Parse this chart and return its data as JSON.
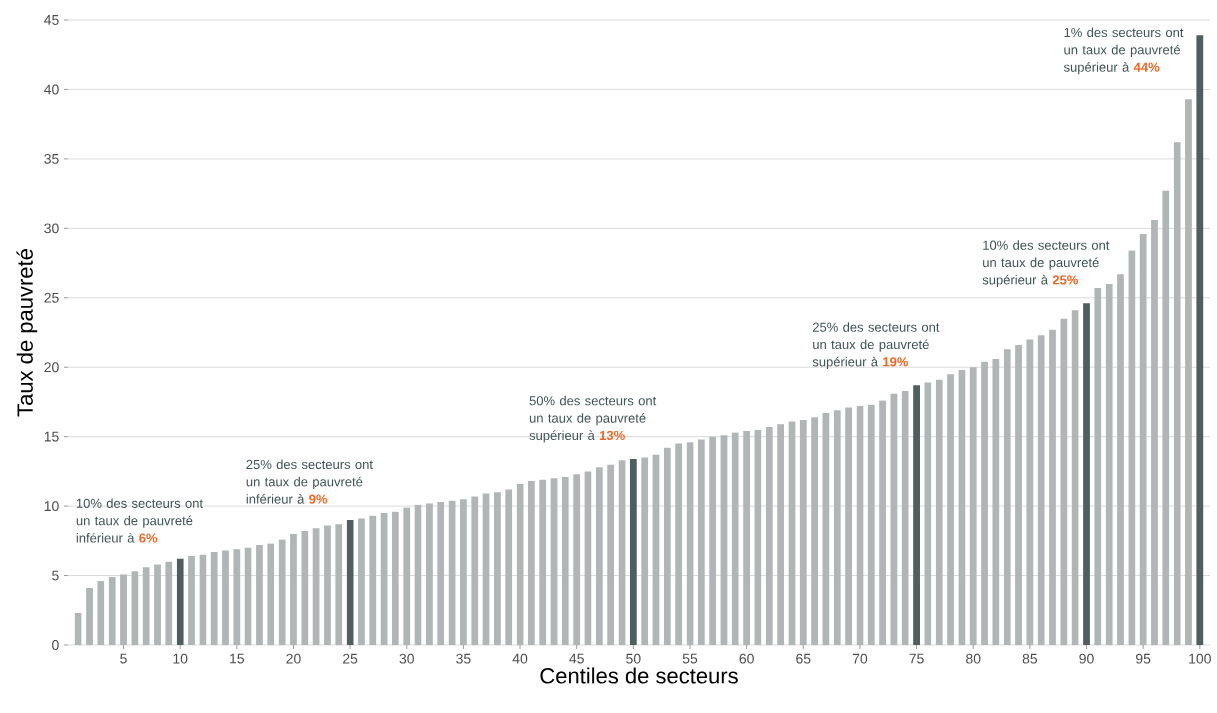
{
  "chart_data": {
    "type": "bar",
    "xlabel": "Centiles de secteurs",
    "ylabel": "Taux de pauvreté",
    "categories": [
      null,
      null,
      null,
      null,
      "5",
      null,
      null,
      null,
      null,
      "10",
      null,
      null,
      null,
      null,
      "15",
      null,
      null,
      null,
      null,
      "20",
      null,
      null,
      null,
      null,
      "25",
      null,
      null,
      null,
      null,
      "30",
      null,
      null,
      null,
      null,
      "35",
      null,
      null,
      null,
      null,
      "40",
      null,
      null,
      null,
      null,
      "45",
      null,
      null,
      null,
      null,
      "50",
      null,
      null,
      null,
      null,
      "55",
      null,
      null,
      null,
      null,
      "60",
      null,
      null,
      null,
      null,
      "65",
      null,
      null,
      null,
      null,
      "70",
      null,
      null,
      null,
      null,
      "75",
      null,
      null,
      null,
      null,
      "80",
      null,
      null,
      null,
      null,
      "85",
      null,
      null,
      null,
      null,
      "90",
      null,
      null,
      null,
      null,
      "95",
      null,
      null,
      null,
      null,
      "100"
    ],
    "values": [
      2.3,
      4.1,
      4.6,
      4.9,
      5.1,
      5.3,
      5.6,
      5.8,
      6.0,
      6.2,
      6.4,
      6.5,
      6.7,
      6.8,
      6.9,
      7.0,
      7.2,
      7.3,
      7.6,
      8.0,
      8.2,
      8.4,
      8.6,
      8.7,
      9.0,
      9.1,
      9.3,
      9.5,
      9.6,
      9.9,
      10.1,
      10.2,
      10.3,
      10.4,
      10.5,
      10.7,
      10.9,
      11.0,
      11.2,
      11.6,
      11.8,
      11.9,
      12.0,
      12.1,
      12.3,
      12.5,
      12.8,
      13.0,
      13.3,
      13.4,
      13.5,
      13.7,
      14.2,
      14.5,
      14.6,
      14.8,
      15.0,
      15.1,
      15.3,
      15.4,
      15.5,
      15.7,
      15.9,
      16.1,
      16.2,
      16.4,
      16.7,
      16.9,
      17.1,
      17.2,
      17.3,
      17.6,
      18.1,
      18.3,
      18.7,
      18.9,
      19.1,
      19.5,
      19.8,
      20.0,
      20.4,
      20.6,
      21.3,
      21.6,
      22.0,
      22.3,
      22.7,
      23.5,
      24.1,
      24.6,
      25.7,
      26.0,
      26.7,
      28.4,
      29.6,
      30.6,
      32.7,
      36.2,
      39.3,
      43.9
    ],
    "colors": [
      "#b0b6b6",
      "#b0b6b6",
      "#b0b6b6",
      "#b0b6b6",
      "#b0b6b6",
      "#b0b6b6",
      "#b0b6b6",
      "#b0b6b6",
      "#b0b6b6",
      "#4f5f60",
      "#b0b6b6",
      "#b0b6b6",
      "#b0b6b6",
      "#b0b6b6",
      "#b0b6b6",
      "#b0b6b6",
      "#b0b6b6",
      "#b0b6b6",
      "#b0b6b6",
      "#b0b6b6",
      "#b0b6b6",
      "#b0b6b6",
      "#b0b6b6",
      "#b0b6b6",
      "#4f5f60",
      "#b0b6b6",
      "#b0b6b6",
      "#b0b6b6",
      "#b0b6b6",
      "#b0b6b6",
      "#b0b6b6",
      "#b0b6b6",
      "#b0b6b6",
      "#b0b6b6",
      "#b0b6b6",
      "#b0b6b6",
      "#b0b6b6",
      "#b0b6b6",
      "#b0b6b6",
      "#b0b6b6",
      "#b0b6b6",
      "#b0b6b6",
      "#b0b6b6",
      "#b0b6b6",
      "#b0b6b6",
      "#b0b6b6",
      "#b0b6b6",
      "#b0b6b6",
      "#b0b6b6",
      "#4f5f60",
      "#b0b6b6",
      "#b0b6b6",
      "#b0b6b6",
      "#b0b6b6",
      "#b0b6b6",
      "#b0b6b6",
      "#b0b6b6",
      "#b0b6b6",
      "#b0b6b6",
      "#b0b6b6",
      "#b0b6b6",
      "#b0b6b6",
      "#b0b6b6",
      "#b0b6b6",
      "#b0b6b6",
      "#b0b6b6",
      "#b0b6b6",
      "#b0b6b6",
      "#b0b6b6",
      "#b0b6b6",
      "#b0b6b6",
      "#b0b6b6",
      "#b0b6b6",
      "#b0b6b6",
      "#4f5f60",
      "#b0b6b6",
      "#b0b6b6",
      "#b0b6b6",
      "#b0b6b6",
      "#b0b6b6",
      "#b0b6b6",
      "#b0b6b6",
      "#b0b6b6",
      "#b0b6b6",
      "#b0b6b6",
      "#b0b6b6",
      "#b0b6b6",
      "#b0b6b6",
      "#b0b6b6",
      "#4f5f60",
      "#b0b6b6",
      "#b0b6b6",
      "#b0b6b6",
      "#b0b6b6",
      "#b0b6b6",
      "#b0b6b6",
      "#b0b6b6",
      "#b0b6b6",
      "#b0b6b6",
      "#4f5f60"
    ],
    "ylim": [
      0,
      45
    ],
    "yticks": [
      0,
      5,
      10,
      15,
      20,
      25,
      30,
      35,
      40,
      45
    ],
    "grid": "y",
    "annotations": [
      {
        "text": "10% des secteurs ont un taux de pauvreté inférieur à **6%**",
        "x": "10",
        "y": 6.2
      },
      {
        "text": "25% des secteurs ont un taux de pauvreté inférieur à **9%**",
        "x": "25",
        "y": 9.0
      },
      {
        "text": "50% des secteurs ont un taux de pauvreté supérieur à **13%**",
        "x": "50",
        "y": 13.4
      },
      {
        "text": "25% des secteurs ont un taux de pauvreté supérieur à **19%**",
        "x": "75",
        "y": 18.7
      },
      {
        "text": "10% des secteurs ont un taux de pauvreté supérieur à **25%**",
        "x": "90",
        "y": 24.6
      },
      {
        "text": "1% des secteurs ont un taux de pauvreté supérieur à **44%**",
        "x": "100",
        "y": 43.9
      }
    ]
  }
}
